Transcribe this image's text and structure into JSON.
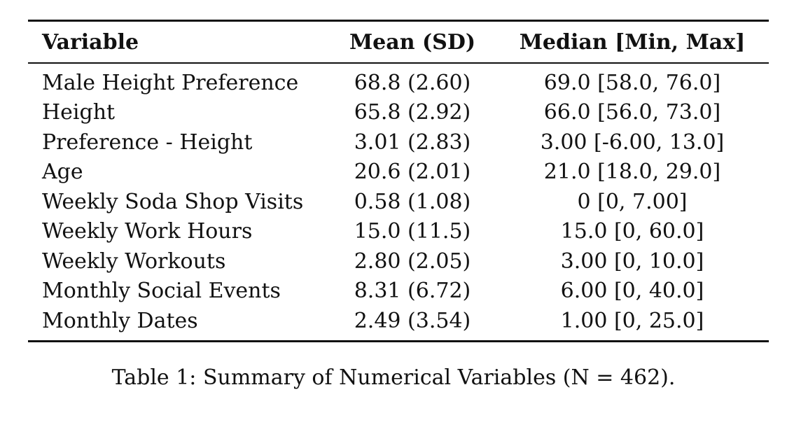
{
  "table": {
    "headers": {
      "variable": "Variable",
      "mean_sd": "Mean (SD)",
      "median_range": "Median [Min, Max]"
    },
    "rows": [
      {
        "variable": "Male Height Preference",
        "mean_sd": "68.8 (2.60)",
        "median_range": "69.0 [58.0, 76.0]"
      },
      {
        "variable": "Height",
        "mean_sd": "65.8 (2.92)",
        "median_range": "66.0 [56.0, 73.0]"
      },
      {
        "variable": "Preference - Height",
        "mean_sd": "3.01 (2.83)",
        "median_range": "3.00 [-6.00, 13.0]"
      },
      {
        "variable": "Age",
        "mean_sd": "20.6 (2.01)",
        "median_range": "21.0 [18.0, 29.0]"
      },
      {
        "variable": "Weekly Soda Shop Visits",
        "mean_sd": "0.58 (1.08)",
        "median_range": "0 [0, 7.00]"
      },
      {
        "variable": "Weekly Work Hours",
        "mean_sd": "15.0 (11.5)",
        "median_range": "15.0 [0, 60.0]"
      },
      {
        "variable": "Weekly Workouts",
        "mean_sd": "2.80 (2.05)",
        "median_range": "3.00 [0, 10.0]"
      },
      {
        "variable": "Monthly Social Events",
        "mean_sd": "8.31 (6.72)",
        "median_range": "6.00 [0, 40.0]"
      },
      {
        "variable": "Monthly Dates",
        "mean_sd": "2.49 (3.54)",
        "median_range": "1.00 [0, 25.0]"
      }
    ]
  },
  "caption": "Table 1: Summary of Numerical Variables (N = 462)."
}
